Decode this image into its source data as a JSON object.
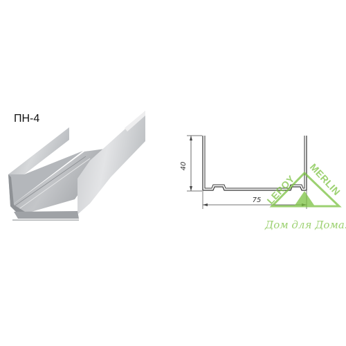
{
  "product": {
    "code": "ПН-4"
  },
  "drawing": {
    "height_label": "40",
    "width_label": "75"
  },
  "watermark": {
    "brand": "LEROY MERLIN",
    "slogan": "Дом для Дома!",
    "color": "#7cc242"
  }
}
